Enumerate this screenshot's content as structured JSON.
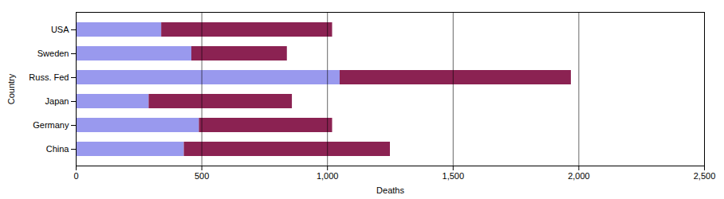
{
  "chart_data": {
    "type": "bar",
    "orientation": "horizontal",
    "stacked": true,
    "categories": [
      "China",
      "Germany",
      "Japan",
      "Russ. Fed",
      "Sweden",
      "USA"
    ],
    "series": [
      {
        "color": "#9999ee",
        "values": [
          430,
          490,
          290,
          1050,
          460,
          340
        ]
      },
      {
        "color": "#8b2252",
        "values": [
          820,
          530,
          570,
          920,
          380,
          680
        ]
      }
    ],
    "xlabel": "Deaths",
    "ylabel": "Country",
    "xlim": [
      0,
      2500
    ],
    "xticks": [
      0,
      500,
      1000,
      1500,
      2000,
      2500
    ],
    "grid": true
  }
}
